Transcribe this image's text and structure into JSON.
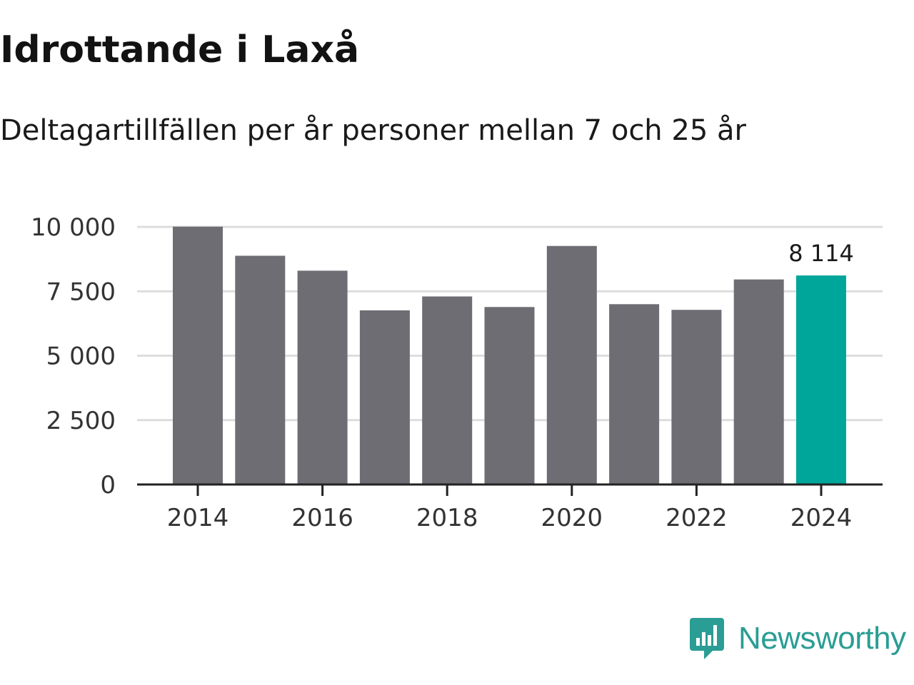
{
  "header": {
    "title": "Idrottande i Laxå",
    "subtitle": "Deltagartillfällen per år personer mellan 7 och 25 år"
  },
  "brand": {
    "name": "Newsworthy",
    "color": "#2a9d94"
  },
  "colors": {
    "bar": "#6e6d73",
    "highlight": "#00a69a",
    "grid": "#dddddd",
    "axis": "#222222",
    "text": "#333333"
  },
  "chart_data": {
    "type": "bar",
    "title": "Idrottande i Laxå",
    "subtitle": "Deltagartillfällen per år personer mellan 7 och 25 år",
    "xlabel": "",
    "ylabel": "",
    "categories": [
      "2014",
      "2015",
      "2016",
      "2017",
      "2018",
      "2019",
      "2020",
      "2021",
      "2022",
      "2023",
      "2024"
    ],
    "values": [
      10010,
      8880,
      8300,
      6760,
      7300,
      6890,
      9260,
      7000,
      6780,
      7960,
      8114
    ],
    "highlight_index": 10,
    "highlight_label": "8 114",
    "ylim": [
      0,
      10000
    ],
    "yticks": [
      0,
      2500,
      5000,
      7500,
      10000
    ],
    "ytick_labels": [
      "0",
      "2 500",
      "5 000",
      "7 500",
      "10 000"
    ],
    "xtick_labels": [
      "2014",
      "2016",
      "2018",
      "2020",
      "2022",
      "2024"
    ],
    "grid": true,
    "legend": "none"
  }
}
